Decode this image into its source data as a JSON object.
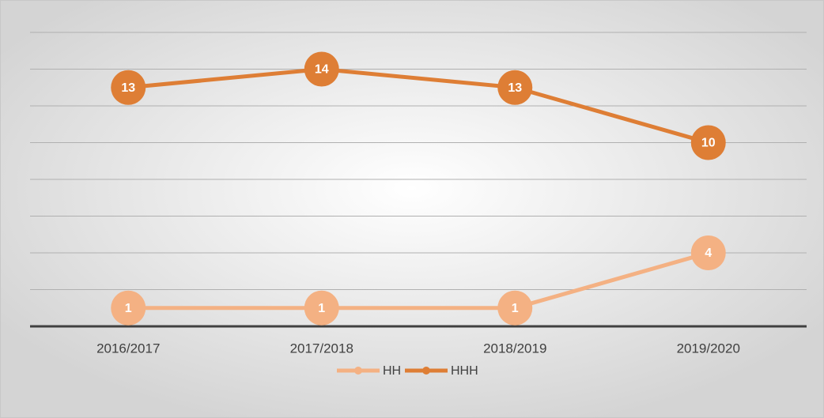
{
  "chart_data": {
    "type": "line",
    "categories": [
      "2016/2017",
      "2017/2018",
      "2018/2019",
      "2019/2020"
    ],
    "series": [
      {
        "name": "HH",
        "color": "#f4b183",
        "values": [
          1,
          1,
          1,
          4
        ]
      },
      {
        "name": "HHH",
        "color": "#de7e35",
        "values": [
          13,
          14,
          13,
          10
        ]
      }
    ],
    "ylim": [
      0,
      16
    ],
    "yticks": [
      0,
      2,
      4,
      6,
      8,
      10,
      12,
      14,
      16
    ],
    "grid": true,
    "legend": "bottom"
  }
}
